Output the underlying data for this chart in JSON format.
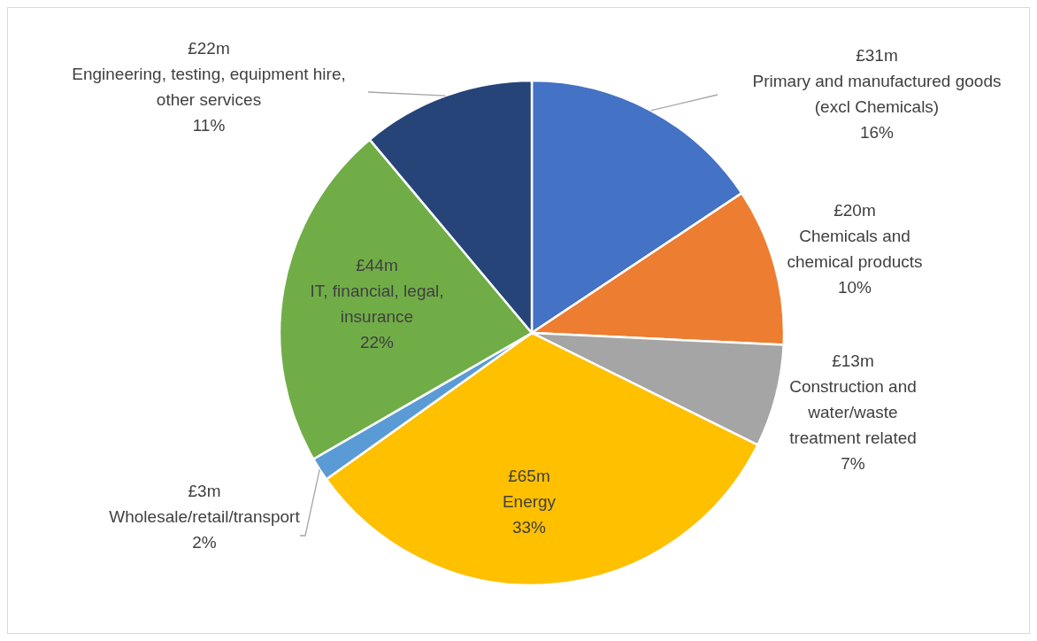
{
  "chart_data": {
    "type": "pie",
    "categories": [
      "Primary and manufactured goods (excl Chemicals)",
      "Chemicals and chemical products",
      "Construction and water/waste treatment related",
      "Energy",
      "Wholesale/retail/transport",
      "IT, financial, legal, insurance",
      "Engineering, testing, equipment hire, other services"
    ],
    "values": [
      31,
      20,
      13,
      65,
      3,
      44,
      22
    ],
    "value_labels": [
      "£31m",
      "£20m",
      "£13m",
      "£65m",
      "£3m",
      "£44m",
      "£22m"
    ],
    "colors": [
      "#4472c4",
      "#ed7d31",
      "#a5a5a5",
      "#ffc000",
      "#5b9bd5",
      "#70ad47",
      "#264478"
    ],
    "annotations": [
      "16%",
      "10%",
      "7%",
      "33%",
      "2%",
      "22%",
      "11%"
    ],
    "legend": false
  }
}
